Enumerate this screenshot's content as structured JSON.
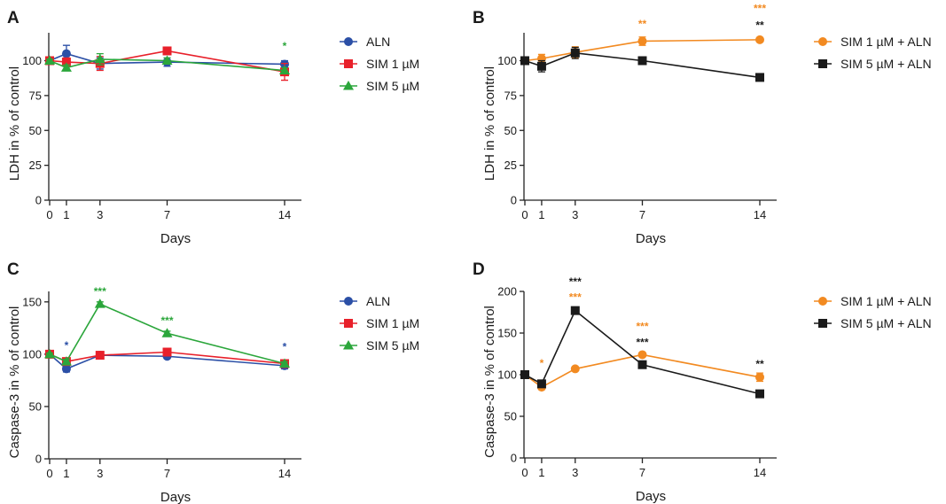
{
  "colors": {
    "ALN": "#2b4fa6",
    "SIM 1 µM": "#e8202a",
    "SIM 5 µM": "#2ba63b",
    "SIM 1 µM + ALN": "#f28a21",
    "SIM 5 µM + ALN": "#1a1a1a"
  },
  "chart_data": [
    {
      "panel": "A",
      "type": "line",
      "xlabel": "Days",
      "ylabel": "LDH in % of control",
      "x": [
        0,
        1,
        3,
        7,
        14
      ],
      "xticks": [
        0,
        1,
        3,
        7,
        14
      ],
      "ylim": [
        0,
        120
      ],
      "yticks": [
        0,
        25,
        50,
        75,
        100
      ],
      "legend": "right",
      "series": [
        {
          "name": "ALN",
          "marker": "circle",
          "values": [
            100,
            105,
            98,
            99,
            97.5
          ],
          "err": [
            1,
            6,
            4,
            3,
            2.5
          ]
        },
        {
          "name": "SIM 1 µM",
          "marker": "square",
          "values": [
            100,
            99,
            98,
            107,
            92
          ],
          "err": [
            1,
            3,
            5,
            2,
            6
          ]
        },
        {
          "name": "SIM 5 µM",
          "marker": "triangle",
          "values": [
            100,
            95,
            101,
            100,
            93
          ],
          "err": [
            1,
            2,
            4,
            2,
            2
          ]
        }
      ],
      "annotations": [
        {
          "day": 14,
          "level": 111,
          "text": "*",
          "series": "SIM 5 µM"
        }
      ]
    },
    {
      "panel": "B",
      "type": "line",
      "xlabel": "Days",
      "ylabel": "LDH in % of control",
      "x": [
        0,
        1,
        3,
        7,
        14
      ],
      "xticks": [
        0,
        1,
        3,
        7,
        14
      ],
      "ylim": [
        0,
        120
      ],
      "yticks": [
        0,
        25,
        50,
        75,
        100
      ],
      "legend": "right",
      "series": [
        {
          "name": "SIM 1 µM + ALN",
          "marker": "circle",
          "values": [
            100,
            101.5,
            106,
            114,
            115
          ],
          "err": [
            1,
            3,
            4,
            3,
            1
          ]
        },
        {
          "name": "SIM 5 µM + ALN",
          "marker": "square",
          "values": [
            100,
            96,
            105.5,
            100,
            88
          ],
          "err": [
            1,
            4,
            4,
            2,
            2
          ]
        }
      ],
      "annotations": [
        {
          "day": 7,
          "level": 127,
          "text": "**",
          "series": "SIM 1 µM + ALN"
        },
        {
          "day": 14,
          "level": 138,
          "text": "***",
          "series": "SIM 1 µM + ALN"
        },
        {
          "day": 14,
          "level": 126,
          "text": "**",
          "series": "SIM 5 µM + ALN"
        }
      ]
    },
    {
      "panel": "C",
      "type": "line",
      "xlabel": "Days",
      "ylabel": "Caspase-3 in % of control",
      "x": [
        0,
        1,
        3,
        7,
        14
      ],
      "xticks": [
        0,
        1,
        3,
        7,
        14
      ],
      "ylim": [
        0,
        160
      ],
      "yticks": [
        0,
        50,
        100,
        150
      ],
      "legend": "right",
      "series": [
        {
          "name": "ALN",
          "marker": "circle",
          "values": [
            100,
            86,
            99,
            98,
            89
          ],
          "err": [
            1,
            3,
            2,
            2,
            3
          ]
        },
        {
          "name": "SIM 1 µM",
          "marker": "square",
          "values": [
            100,
            93,
            99,
            102,
            91
          ],
          "err": [
            1,
            3,
            2,
            2,
            2
          ]
        },
        {
          "name": "SIM 5 µM",
          "marker": "triangle",
          "values": [
            100,
            93,
            148,
            120,
            91
          ],
          "err": [
            1,
            2,
            2,
            2,
            2
          ]
        }
      ],
      "annotations": [
        {
          "day": 1,
          "level": 109,
          "text": "*",
          "series": "ALN"
        },
        {
          "day": 3,
          "level": 161,
          "text": "***",
          "series": "SIM 5 µM"
        },
        {
          "day": 7,
          "level": 133,
          "text": "***",
          "series": "SIM 5 µM"
        },
        {
          "day": 14,
          "level": 108,
          "text": "*",
          "series": "ALN"
        }
      ]
    },
    {
      "panel": "D",
      "type": "line",
      "xlabel": "Days",
      "ylabel": "Caspase-3 in % of control",
      "x": [
        0,
        1,
        3,
        7,
        14
      ],
      "xticks": [
        0,
        1,
        3,
        7,
        14
      ],
      "ylim": [
        0,
        200
      ],
      "yticks": [
        0,
        50,
        100,
        150,
        200
      ],
      "legend": "right",
      "series": [
        {
          "name": "SIM 1 µM + ALN",
          "marker": "circle",
          "values": [
            100,
            85,
            107,
            124,
            97
          ],
          "err": [
            1,
            2,
            2,
            2,
            5
          ]
        },
        {
          "name": "SIM 5 µM + ALN",
          "marker": "square",
          "values": [
            100,
            89,
            177,
            112,
            77
          ],
          "err": [
            1,
            2,
            2,
            2,
            2
          ]
        }
      ],
      "annotations": [
        {
          "day": 3,
          "level": 213,
          "text": "***",
          "series": "SIM 5 µM + ALN"
        },
        {
          "day": 3,
          "level": 194,
          "text": "***",
          "series": "SIM 1 µM + ALN"
        },
        {
          "day": 1,
          "level": 115,
          "text": "*",
          "series": "SIM 1 µM + ALN"
        },
        {
          "day": 7,
          "level": 159,
          "text": "***",
          "series": "SIM 1 µM + ALN"
        },
        {
          "day": 7,
          "level": 140,
          "text": "***",
          "series": "SIM 5 µM + ALN"
        },
        {
          "day": 14,
          "level": 114,
          "text": "**",
          "series": "SIM 5 µM + ALN"
        }
      ]
    }
  ]
}
